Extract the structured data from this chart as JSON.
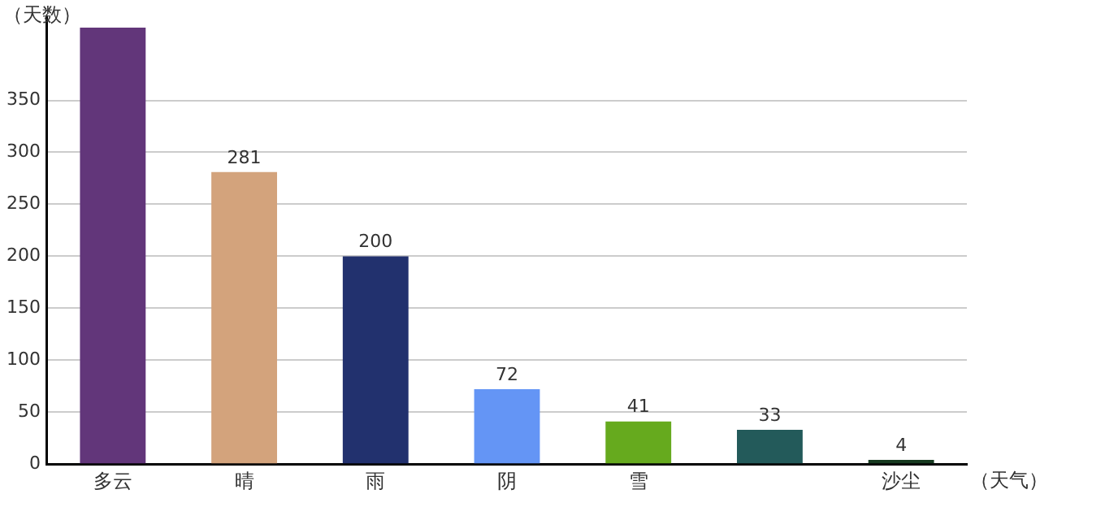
{
  "chart_data": {
    "type": "bar",
    "xlabel": "（天气）",
    "ylabel": "（天数）",
    "categories": [
      "多云",
      "晴",
      "雨",
      "阴",
      "雪",
      null,
      "沙尘"
    ],
    "values": [
      420,
      281,
      200,
      72,
      41,
      33,
      4
    ],
    "value_labels": [
      null,
      "281",
      "200",
      "72",
      "41",
      "33",
      "4"
    ],
    "colors": [
      "#62367a",
      "#d3a37c",
      "#22316e",
      "#6495f5",
      "#66aa1e",
      "#235a5a",
      "#173a20"
    ],
    "ylim": [
      0,
      430
    ],
    "yticks": [
      0,
      50,
      100,
      150,
      200,
      250,
      300,
      350
    ],
    "grid": "y",
    "legend": false
  }
}
